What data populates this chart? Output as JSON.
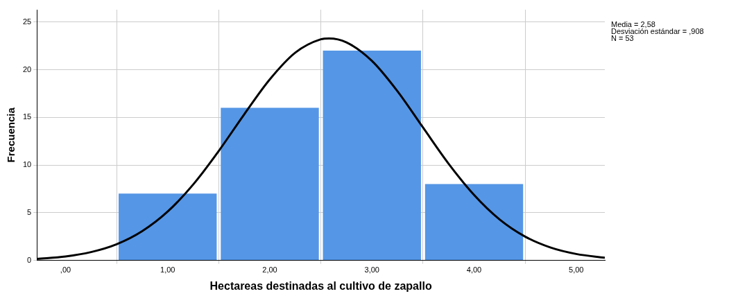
{
  "chart_data": {
    "type": "histogram",
    "xlabel": "Hectareas destinadas al cultivo de zapallo",
    "ylabel": "Frecuencia",
    "bins": [
      0.5,
      1.5,
      2.5,
      3.5,
      4.5
    ],
    "values": [
      7,
      16,
      22,
      8
    ],
    "color": "#5596e6",
    "series": [
      {
        "type": "line",
        "color": "#000000",
        "x": [
          -0.28,
          0,
          0.25,
          0.5,
          0.75,
          1,
          1.25,
          1.5,
          1.75,
          2,
          2.25,
          2.5,
          2.58,
          2.75,
          3,
          3.25,
          3.5,
          3.75,
          4,
          4.25,
          4.5,
          4.75,
          5,
          5.28
        ],
        "values": [
          0.16,
          0.41,
          0.87,
          1.69,
          3.06,
          5.12,
          7.96,
          11.48,
          15.33,
          18.99,
          21.8,
          23.2,
          23.29,
          22.88,
          20.93,
          17.75,
          13.94,
          10.15,
          6.86,
          4.29,
          2.49,
          1.34,
          0.67,
          0.28
        ]
      }
    ],
    "xlim": [
      -0.28,
      5.28
    ],
    "xticks": [
      {
        "value": 0,
        "label": ",00"
      },
      {
        "value": 1,
        "label": "1,00"
      },
      {
        "value": 2,
        "label": "2,00"
      },
      {
        "value": 3,
        "label": "3,00"
      },
      {
        "value": 4,
        "label": "4,00"
      },
      {
        "value": 5,
        "label": "5,00"
      }
    ],
    "ylim": [
      0,
      26.3
    ],
    "yticks": [
      0,
      5,
      10,
      15,
      20,
      25
    ],
    "grid": true,
    "marker": "none",
    "annotations": [
      "Media = 2,58",
      "Desviación estándar = ,908",
      "N = 53"
    ]
  }
}
